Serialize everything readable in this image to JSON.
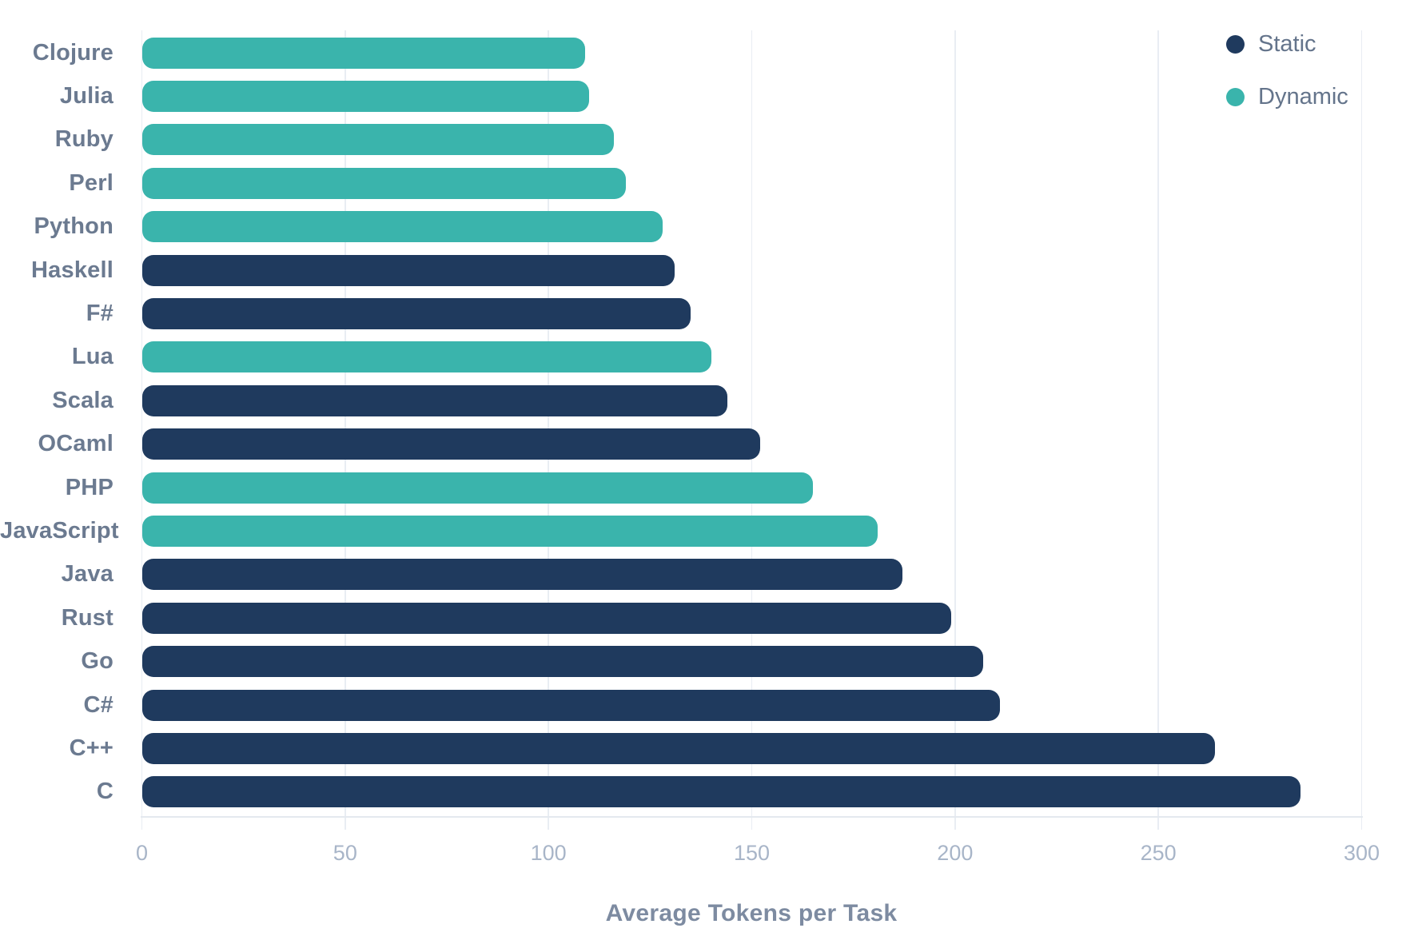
{
  "chart_data": {
    "type": "bar",
    "orientation": "horizontal",
    "title": "",
    "xlabel": "Average Tokens per Task",
    "ylabel": "",
    "xlim": [
      0,
      300
    ],
    "xticks": [
      0,
      50,
      100,
      150,
      200,
      250,
      300
    ],
    "grid": true,
    "legend_position": "top-right",
    "legend": [
      {
        "label": "Static",
        "color": "#1f3a5e"
      },
      {
        "label": "Dynamic",
        "color": "#3ab4ac"
      }
    ],
    "colors": {
      "Static": "#1f3a5e",
      "Dynamic": "#3ab4ac"
    },
    "bars": [
      {
        "category": "Clojure",
        "value": 109,
        "series": "Dynamic"
      },
      {
        "category": "Julia",
        "value": 110,
        "series": "Dynamic"
      },
      {
        "category": "Ruby",
        "value": 116,
        "series": "Dynamic"
      },
      {
        "category": "Perl",
        "value": 119,
        "series": "Dynamic"
      },
      {
        "category": "Python",
        "value": 128,
        "series": "Dynamic"
      },
      {
        "category": "Haskell",
        "value": 131,
        "series": "Static"
      },
      {
        "category": "F#",
        "value": 135,
        "series": "Static"
      },
      {
        "category": "Lua",
        "value": 140,
        "series": "Dynamic"
      },
      {
        "category": "Scala",
        "value": 144,
        "series": "Static"
      },
      {
        "category": "OCaml",
        "value": 152,
        "series": "Static"
      },
      {
        "category": "PHP",
        "value": 165,
        "series": "Dynamic"
      },
      {
        "category": "JavaScript",
        "value": 181,
        "series": "Dynamic"
      },
      {
        "category": "Java",
        "value": 187,
        "series": "Static"
      },
      {
        "category": "Rust",
        "value": 199,
        "series": "Static"
      },
      {
        "category": "Go",
        "value": 207,
        "series": "Static"
      },
      {
        "category": "C#",
        "value": 211,
        "series": "Static"
      },
      {
        "category": "C++",
        "value": 264,
        "series": "Static"
      },
      {
        "category": "C",
        "value": 285,
        "series": "Static"
      }
    ]
  }
}
